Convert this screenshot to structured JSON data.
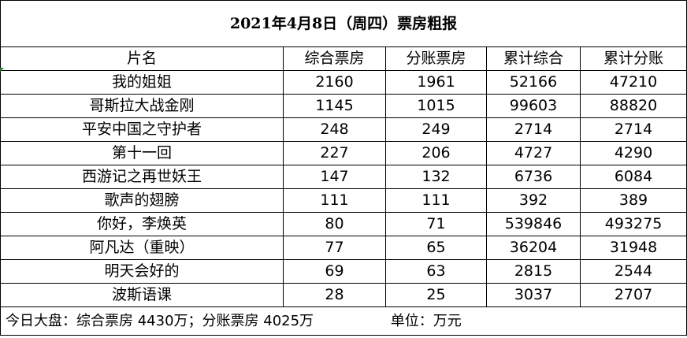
{
  "title": "2021年4月8日（周四）票房粗报",
  "columns": [
    "片名",
    "综合票房",
    "分账票房",
    "累计综合",
    "累计分账"
  ],
  "rows": [
    [
      "我的姐姐",
      "2160",
      "1961",
      "52166",
      "47210"
    ],
    [
      "哥斯拉大战金刚",
      "1145",
      "1015",
      "99603",
      "88820"
    ],
    [
      "平安中国之守护者",
      "248",
      "249",
      "2714",
      "2714"
    ],
    [
      "第十一回",
      "227",
      "206",
      "4727",
      "4290"
    ],
    [
      "西游记之再世妖王",
      "147",
      "132",
      "6736",
      "6084"
    ],
    [
      "歌声的翅膀",
      "111",
      "111",
      "392",
      "389"
    ],
    [
      "你好，李焕英",
      "80",
      "71",
      "539846",
      "493275"
    ],
    [
      "阿凡达（重映）",
      "77",
      "65",
      "36204",
      "31948"
    ],
    [
      "明天会好的",
      "69",
      "63",
      "2815",
      "2544"
    ],
    [
      "波斯语课",
      "28",
      "25",
      "3037",
      "2707"
    ]
  ],
  "footer": {
    "summary": "今日大盘：综合票房 4430万；分账票房 4025万",
    "unit": "单位：万元"
  }
}
